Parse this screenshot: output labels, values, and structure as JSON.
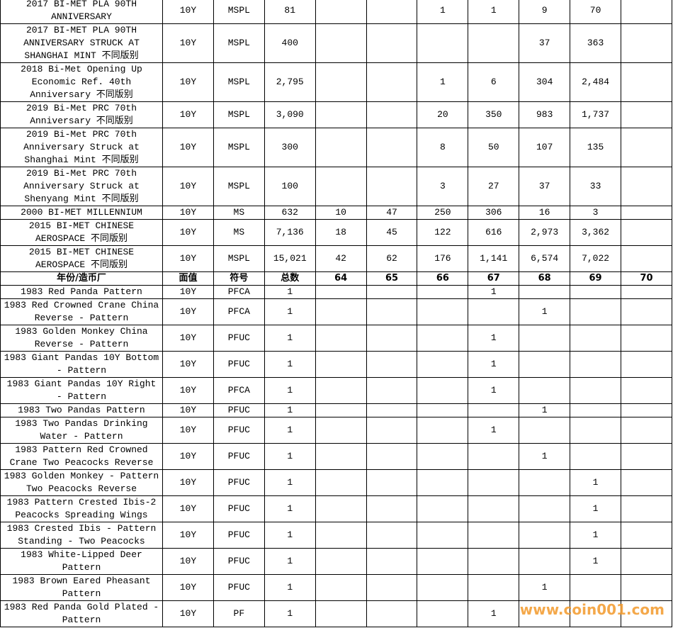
{
  "table": {
    "rows_top": [
      [
        "2017 BI-MET PLA 90TH ANNIVERSARY",
        "10Y",
        "MSPL",
        "81",
        null,
        null,
        "1",
        "1",
        "9",
        "70",
        null
      ],
      [
        "2017 BI-MET PLA 90TH ANNIVERSARY STRUCK AT SHANGHAI MINT 不同版别",
        "10Y",
        "MSPL",
        "400",
        null,
        null,
        null,
        null,
        "37",
        "363",
        null
      ],
      [
        "2018 Bi-Met Opening Up Economic Ref. 40th Anniversary 不同版别",
        "10Y",
        "MSPL",
        "2,795",
        null,
        null,
        "1",
        "6",
        "304",
        "2,484",
        null
      ],
      [
        "2019 Bi-Met PRC 70th Anniversary 不同版别",
        "10Y",
        "MSPL",
        "3,090",
        null,
        null,
        "20",
        "350",
        "983",
        "1,737",
        null
      ],
      [
        "2019 Bi-Met PRC 70th Anniversary Struck at Shanghai Mint 不同版别",
        "10Y",
        "MSPL",
        "300",
        null,
        null,
        "8",
        "50",
        "107",
        "135",
        null
      ],
      [
        "2019 Bi-Met PRC 70th Anniversary Struck at Shenyang Mint 不同版别",
        "10Y",
        "MSPL",
        "100",
        null,
        null,
        "3",
        "27",
        "37",
        "33",
        null
      ],
      [
        "2000 BI-MET MILLENNIUM",
        "10Y",
        "MS",
        "632",
        "10",
        "47",
        "250",
        "306",
        "16",
        "3",
        null
      ],
      [
        "2015 BI-MET CHINESE AEROSPACE 不同版别",
        "10Y",
        "MS",
        "7,136",
        "18",
        "45",
        "122",
        "616",
        "2,973",
        "3,362",
        null
      ],
      [
        "2015 BI-MET CHINESE AEROSPACE 不同版别",
        "10Y",
        "MSPL",
        "15,021",
        "42",
        "62",
        "176",
        "1,141",
        "6,574",
        "7,022",
        null
      ]
    ],
    "header": [
      "年份/造币厂",
      "面值",
      "符号",
      "总数",
      "64",
      "65",
      "66",
      "67",
      "68",
      "69",
      "70"
    ],
    "rows": [
      [
        "1983 Red Panda Pattern",
        "10Y",
        "PFCA",
        "1",
        null,
        null,
        null,
        "1",
        null,
        null,
        null
      ],
      [
        "1983 Red Crowned Crane China Reverse - Pattern",
        "10Y",
        "PFCA",
        "1",
        null,
        null,
        null,
        null,
        "1",
        null,
        null
      ],
      [
        "1983 Golden Monkey China Reverse - Pattern",
        "10Y",
        "PFUC",
        "1",
        null,
        null,
        null,
        "1",
        null,
        null,
        null
      ],
      [
        "1983 Giant Pandas 10Y Bottom - Pattern",
        "10Y",
        "PFUC",
        "1",
        null,
        null,
        null,
        "1",
        null,
        null,
        null
      ],
      [
        "1983 Giant Pandas 10Y Right - Pattern",
        "10Y",
        "PFCA",
        "1",
        null,
        null,
        null,
        "1",
        null,
        null,
        null
      ],
      [
        "1983 Two Pandas Pattern",
        "10Y",
        "PFUC",
        "1",
        null,
        null,
        null,
        null,
        "1",
        null,
        null
      ],
      [
        "1983 Two Pandas Drinking Water - Pattern",
        "10Y",
        "PFUC",
        "1",
        null,
        null,
        null,
        "1",
        null,
        null,
        null
      ],
      [
        "1983 Pattern Red Crowned Crane Two Peacocks Reverse",
        "10Y",
        "PFUC",
        "1",
        null,
        null,
        null,
        null,
        "1",
        null,
        null
      ],
      [
        "1983 Golden Monkey - Pattern Two Peacocks Reverse",
        "10Y",
        "PFUC",
        "1",
        null,
        null,
        null,
        null,
        null,
        "1",
        null
      ],
      [
        "1983 Pattern Crested Ibis-2 Peacocks Spreading Wings",
        "10Y",
        "PFUC",
        "1",
        null,
        null,
        null,
        null,
        null,
        "1",
        null
      ],
      [
        "1983 Crested Ibis - Pattern Standing - Two Peacocks",
        "10Y",
        "PFUC",
        "1",
        null,
        null,
        null,
        null,
        null,
        "1",
        null
      ],
      [
        "1983 White-Lipped Deer Pattern",
        "10Y",
        "PFUC",
        "1",
        null,
        null,
        null,
        null,
        null,
        "1",
        null
      ],
      [
        "1983 Brown Eared Pheasant Pattern",
        "10Y",
        "PFUC",
        "1",
        null,
        null,
        null,
        null,
        "1",
        null,
        null
      ],
      [
        "1983 Red Panda Gold Plated - Pattern",
        "10Y",
        "PF",
        "1",
        null,
        null,
        null,
        "1",
        null,
        null,
        null
      ]
    ]
  },
  "watermark": "www.coin001.com"
}
